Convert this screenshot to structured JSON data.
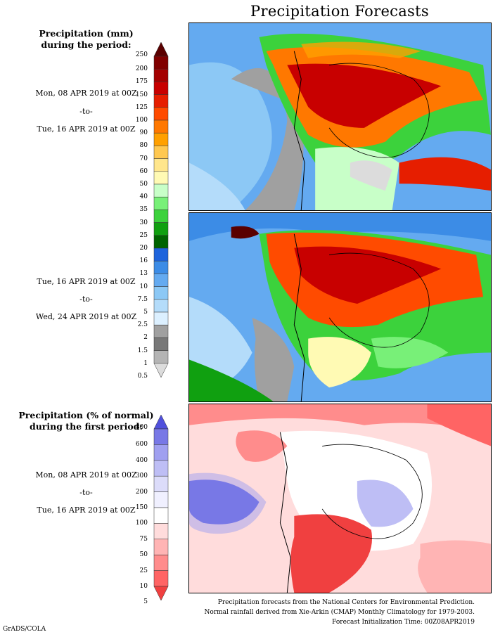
{
  "title": "Precipitation Forecasts",
  "sections": [
    {
      "heading_line1": "Precipitation (mm)",
      "heading_line2": "during the period:"
    },
    {
      "heading_line1": "Precipitation (% of normal)",
      "heading_line2": "during the first period:"
    }
  ],
  "periods": [
    {
      "start": "Mon, 08 APR 2019 at 00Z",
      "sep": "-to-",
      "end": "Tue, 16 APR 2019 at 00Z"
    },
    {
      "start": "Tue, 16 APR 2019 at 00Z",
      "sep": "-to-",
      "end": "Wed, 24 APR 2019 at 00Z"
    },
    {
      "start": "Mon, 08 APR 2019 at 00Z",
      "sep": "-to-",
      "end": "Tue, 16 APR 2019 at 00Z"
    }
  ],
  "mm_scale": {
    "labels": [
      "250",
      "200",
      "175",
      "150",
      "125",
      "100",
      "90",
      "80",
      "70",
      "60",
      "50",
      "40",
      "35",
      "30",
      "25",
      "20",
      "16",
      "13",
      "10",
      "7.5",
      "5",
      "2.5",
      "2",
      "1.5",
      "1",
      "0.5"
    ],
    "colors": [
      "#5a0000",
      "#800000",
      "#a40000",
      "#c80000",
      "#e61e00",
      "#ff4b00",
      "#ff7800",
      "#ffa000",
      "#ffc850",
      "#ffe68c",
      "#fffab4",
      "#c8ffc8",
      "#78f078",
      "#3cd23c",
      "#10a010",
      "#006400",
      "#1e64dc",
      "#3c8ce6",
      "#64aaf0",
      "#8cc8f5",
      "#b4dcfa",
      "#dcf0ff",
      "#a0a0a0",
      "#787878",
      "#b4b4b4",
      "#dcdcdc"
    ]
  },
  "pct_scale": {
    "labels": [
      "800",
      "600",
      "400",
      "300",
      "200",
      "150",
      "100",
      "75",
      "50",
      "25",
      "10",
      "5"
    ],
    "colors": [
      "#5050dc",
      "#7878e6",
      "#a0a0f0",
      "#bebef5",
      "#dcdcfa",
      "#f0f0ff",
      "#ffffff",
      "#ffdcdc",
      "#ffb4b4",
      "#ff8c8c",
      "#ff6464",
      "#f04040"
    ]
  },
  "footer": {
    "line1": "Precipitation forecasts from the National Centers for Environmental Prediction.",
    "line2": "Normal rainfall derived from Xie-Arkin (CMAP) Monthly Climatology for 1979-2003.",
    "line3": "Forecast Initialization Time: 00Z08APR2019"
  },
  "brand": "GrADS/COLA"
}
